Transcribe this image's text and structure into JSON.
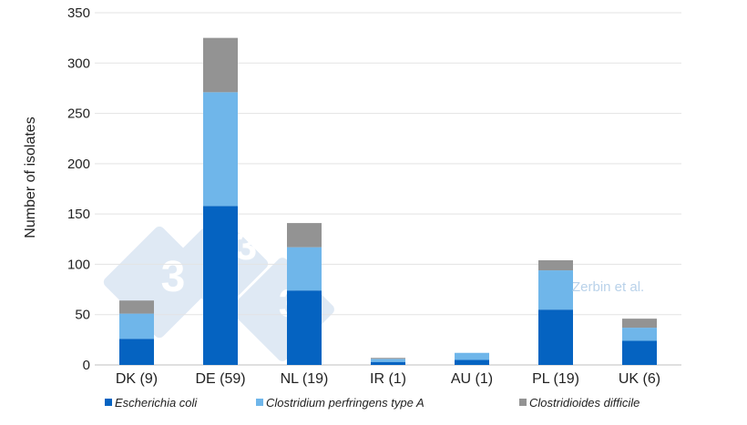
{
  "chart_data": {
    "type": "bar",
    "stacked": true,
    "categories": [
      "DK (9)",
      "DE (59)",
      "NL (19)",
      "IR (1)",
      "AU (1)",
      "PL (19)",
      "UK (6)"
    ],
    "series": [
      {
        "name": "Escherichia coli",
        "color": "#0563C1",
        "values": [
          26,
          158,
          74,
          3,
          5,
          55,
          24
        ]
      },
      {
        "name": "Clostridium perfringens type A",
        "color": "#6FB6EA",
        "values": [
          25,
          113,
          43,
          3,
          7,
          39,
          13
        ]
      },
      {
        "name": "Clostridioides difficile",
        "color": "#939393",
        "values": [
          13,
          54,
          24,
          1,
          0,
          10,
          9
        ]
      }
    ],
    "ylabel": "Number of isolates",
    "ylim": [
      0,
      350
    ],
    "yticks": [
      0,
      50,
      100,
      150,
      200,
      250,
      300,
      350
    ],
    "grid": true,
    "legend_position": "bottom",
    "annotation": "Zerbin et al.",
    "watermark_text": "3 3 3"
  }
}
